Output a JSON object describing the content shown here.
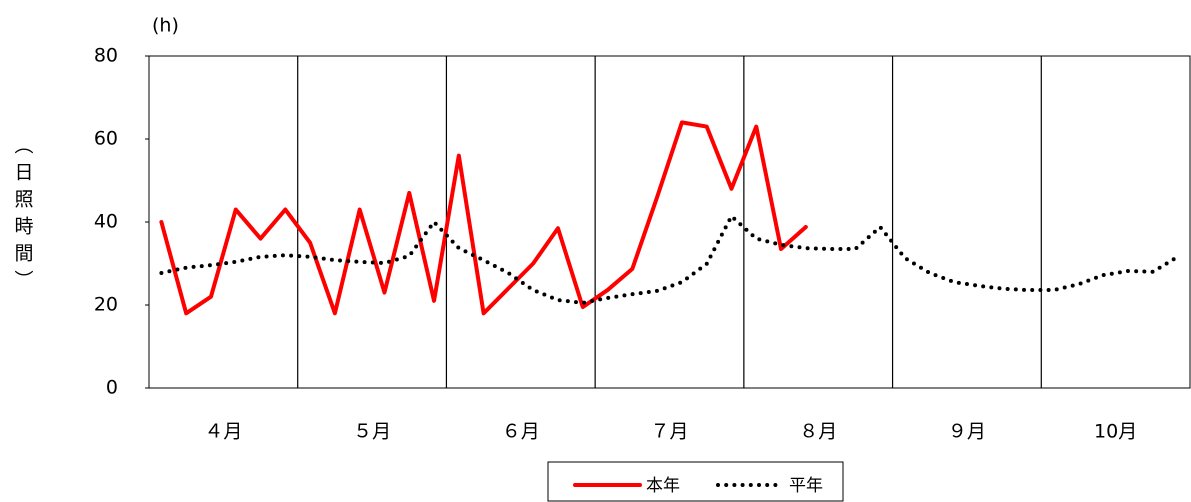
{
  "chart_data": {
    "type": "line",
    "y_unit": "(h)",
    "y_label": "（日照時間）",
    "x": [
      0.5,
      1.5,
      2.5,
      3.5,
      4.5,
      5.5,
      6.5,
      7.5,
      8.5,
      9.5,
      10.5,
      11.5,
      12.5,
      13.5,
      14.5,
      15.5,
      16.5,
      17.5,
      18.5,
      19.5,
      20.5,
      21.5,
      22.5,
      23.5,
      24.5,
      25.5,
      26.5,
      27.5,
      28.5,
      29.5,
      30.5,
      31.5,
      32.5,
      33.5,
      34.5,
      35.5,
      36.5,
      37.5,
      38.5,
      39.5,
      40.5,
      41.5
    ],
    "xlim": [
      0,
      42
    ],
    "xticks": [
      {
        "value": 3,
        "label": "４月"
      },
      {
        "value": 9,
        "label": "５月"
      },
      {
        "value": 15,
        "label": "６月"
      },
      {
        "value": 21,
        "label": "７月"
      },
      {
        "value": 27,
        "label": "８月"
      },
      {
        "value": 33,
        "label": "９月"
      },
      {
        "value": 39,
        "label": "10月"
      }
    ],
    "ylim": [
      0,
      80
    ],
    "yticks": [
      0,
      20,
      40,
      60,
      80
    ],
    "series": [
      {
        "name": "本年",
        "color": "#ff0000",
        "style": "solid",
        "values": [
          40,
          18,
          22,
          43,
          36,
          43,
          35,
          18,
          43,
          23,
          47,
          21,
          56,
          18,
          24,
          30,
          38.5,
          19.5,
          23.6,
          28.7,
          46,
          64,
          63,
          48,
          63,
          33.5,
          38.8,
          null,
          null,
          null,
          null,
          null,
          null,
          null,
          null,
          null,
          null,
          null,
          null,
          null,
          null,
          null
        ]
      },
      {
        "name": "平年",
        "color": "#000000",
        "style": "dotted",
        "values": [
          27.7,
          29,
          29.6,
          30.4,
          31.6,
          32,
          31.6,
          30.8,
          30.4,
          30.1,
          31.8,
          40,
          33.7,
          30.8,
          27.7,
          23.6,
          21.2,
          20.5,
          21.7,
          22.6,
          23.4,
          25.5,
          29.9,
          41.4,
          36,
          34.5,
          33.7,
          33.5,
          33.5,
          38.8,
          31.3,
          27.7,
          25.5,
          24.6,
          23.9,
          23.6,
          23.6,
          25,
          27.2,
          28.2,
          28,
          31.6
        ]
      }
    ]
  }
}
